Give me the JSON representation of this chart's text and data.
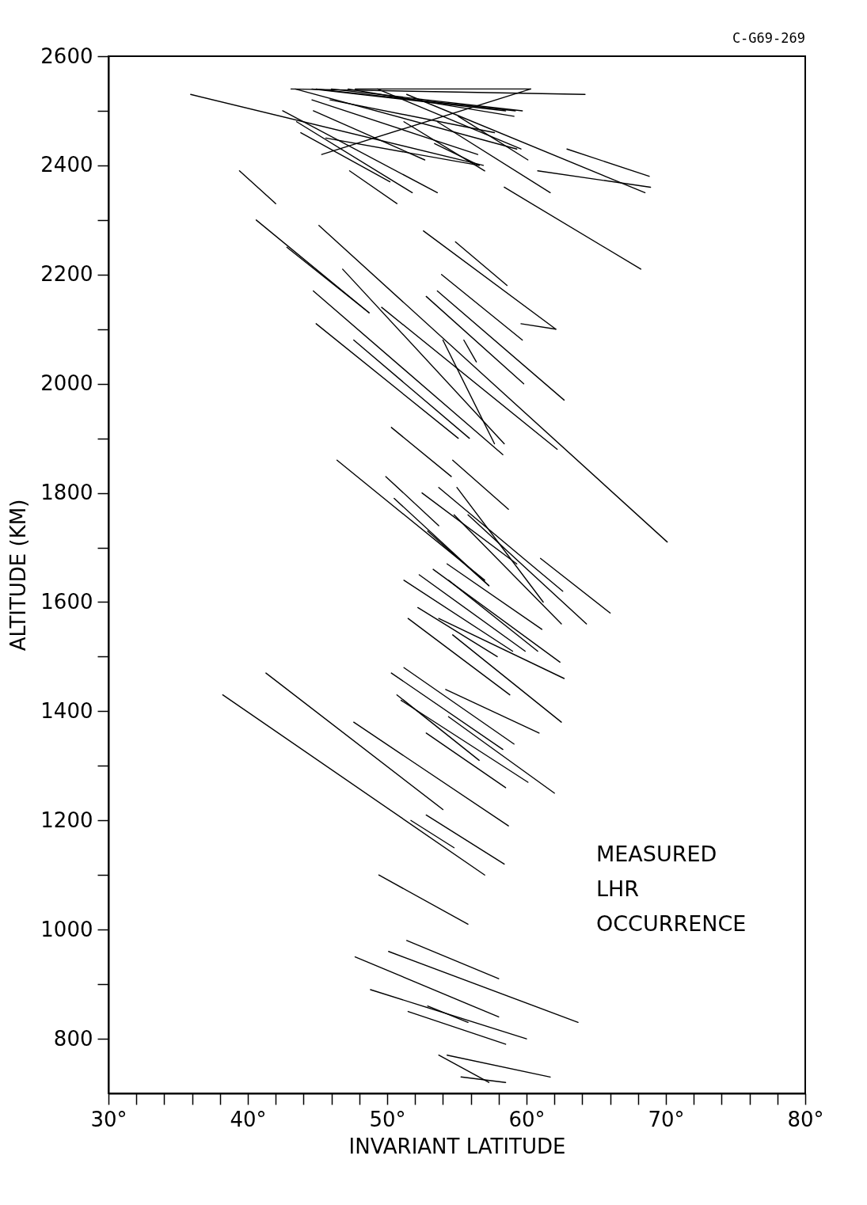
{
  "chart_data": {
    "type": "line",
    "xlabel": "INVARIANT LATITUDE",
    "ylabel": "ALTITUDE (KM)",
    "annotations": [
      "C-G69-269",
      "MEASURED\nLHR\nOCCURRENCE"
    ],
    "xlim": [
      30,
      80
    ],
    "ylim": [
      700,
      2600
    ],
    "xticks": [
      {
        "value": 30,
        "label": "30°"
      },
      {
        "value": 32,
        "label": null
      },
      {
        "value": 34,
        "label": null
      },
      {
        "value": 36,
        "label": null
      },
      {
        "value": 38,
        "label": null
      },
      {
        "value": 40,
        "label": "40°"
      },
      {
        "value": 42,
        "label": null
      },
      {
        "value": 44,
        "label": null
      },
      {
        "value": 46,
        "label": null
      },
      {
        "value": 48,
        "label": null
      },
      {
        "value": 50,
        "label": "50°"
      },
      {
        "value": 52,
        "label": null
      },
      {
        "value": 54,
        "label": null
      },
      {
        "value": 56,
        "label": null
      },
      {
        "value": 58,
        "label": null
      },
      {
        "value": 60,
        "label": "60°"
      },
      {
        "value": 62,
        "label": null
      },
      {
        "value": 64,
        "label": null
      },
      {
        "value": 66,
        "label": null
      },
      {
        "value": 68,
        "label": null
      },
      {
        "value": 70,
        "label": "70°"
      },
      {
        "value": 72,
        "label": null
      },
      {
        "value": 74,
        "label": null
      },
      {
        "value": 76,
        "label": null
      },
      {
        "value": 78,
        "label": null
      },
      {
        "value": 80,
        "label": "80°"
      }
    ],
    "yticks": [
      800,
      {
        "value": 900,
        "label": null
      },
      1000,
      {
        "value": 1100,
        "label": null
      },
      1200,
      {
        "value": 1300,
        "label": null
      },
      1400,
      {
        "value": 1500,
        "label": null
      },
      1600,
      {
        "value": 1700,
        "label": null
      },
      1800,
      {
        "value": 1900,
        "label": null
      },
      2000,
      {
        "value": 2100,
        "label": null
      },
      2200,
      {
        "value": 2300,
        "label": null
      },
      2400,
      {
        "value": 2500,
        "label": null
      },
      2600
    ],
    "series": [
      {
        "color": "#000000",
        "x": [
          35.9,
          56.9
        ],
        "values": [
          2530,
          2400
        ]
      },
      {
        "color": "#000000",
        "x": [
          43.1,
          64.2
        ],
        "values": [
          2540,
          2530
        ]
      },
      {
        "color": "#000000",
        "x": [
          43.4,
          59.3
        ],
        "values": [
          2540,
          2430
        ]
      },
      {
        "color": "#000000",
        "x": [
          44.6,
          58.5
        ],
        "values": [
          2540,
          2500
        ]
      },
      {
        "color": "#000000",
        "x": [
          44.9,
          59.2
        ],
        "values": [
          2540,
          2500
        ]
      },
      {
        "color": "#000000",
        "x": [
          46.0,
          59.7
        ],
        "values": [
          2540,
          2500
        ]
      },
      {
        "color": "#000000",
        "x": [
          47.2,
          59.1
        ],
        "values": [
          2540,
          2490
        ]
      },
      {
        "color": "#000000",
        "x": [
          47.7,
          60.3
        ],
        "values": [
          2540,
          2540
        ]
      },
      {
        "color": "#000000",
        "x": [
          49.3,
          59.6
        ],
        "values": [
          2540,
          2430
        ]
      },
      {
        "color": "#000000",
        "x": [
          51.4,
          68.5
        ],
        "values": [
          2530,
          2350
        ]
      },
      {
        "color": "#000000",
        "x": [
          60.8,
          68.9
        ],
        "values": [
          2390,
          2360
        ]
      },
      {
        "color": "#000000",
        "x": [
          55.1,
          60.1
        ],
        "values": [
          2490,
          2410
        ]
      },
      {
        "color": "#000000",
        "x": [
          62.9,
          68.8
        ],
        "values": [
          2430,
          2380
        ]
      },
      {
        "color": "#000000",
        "x": [
          45.9,
          57.7
        ],
        "values": [
          2520,
          2460
        ]
      },
      {
        "color": "#000000",
        "x": [
          44.6,
          56.5
        ],
        "values": [
          2520,
          2420
        ]
      },
      {
        "color": "#000000",
        "x": [
          51.2,
          57.0
        ],
        "values": [
          2480,
          2390
        ]
      },
      {
        "color": "#000000",
        "x": [
          53.4,
          56.6
        ],
        "values": [
          2440,
          2400
        ]
      },
      {
        "color": "#000000",
        "x": [
          58.4,
          68.2
        ],
        "values": [
          2360,
          2210
        ]
      },
      {
        "color": "#000000",
        "x": [
          53.6,
          61.7
        ],
        "values": [
          2480,
          2350
        ]
      },
      {
        "color": "#000000",
        "x": [
          45.3,
          60.3
        ],
        "values": [
          2420,
          2540
        ]
      },
      {
        "color": "#000000",
        "x": [
          42.5,
          53.6
        ],
        "values": [
          2500,
          2350
        ]
      },
      {
        "color": "#000000",
        "x": [
          43.5,
          51.8
        ],
        "values": [
          2480,
          2350
        ]
      },
      {
        "color": "#000000",
        "x": [
          43.8,
          50.2
        ],
        "values": [
          2460,
          2370
        ]
      },
      {
        "color": "#000000",
        "x": [
          44.7,
          52.7
        ],
        "values": [
          2500,
          2410
        ]
      },
      {
        "color": "#000000",
        "x": [
          39.4,
          42.0
        ],
        "values": [
          2390,
          2330
        ]
      },
      {
        "color": "#000000",
        "x": [
          47.3,
          50.7
        ],
        "values": [
          2390,
          2330
        ]
      },
      {
        "color": "#000000",
        "x": [
          45.6,
          56.6
        ],
        "values": [
          2450,
          2400
        ]
      },
      {
        "color": "#000000",
        "x": [
          40.6,
          48.7
        ],
        "values": [
          2300,
          2130
        ]
      },
      {
        "color": "#000000",
        "x": [
          49.6,
          62.2
        ],
        "values": [
          2140,
          1880
        ]
      },
      {
        "color": "#000000",
        "x": [
          45.1,
          70.1
        ],
        "values": [
          2290,
          1710
        ]
      },
      {
        "color": "#000000",
        "x": [
          42.8,
          48.7
        ],
        "values": [
          2250,
          2130
        ]
      },
      {
        "color": "#000000",
        "x": [
          46.8,
          58.4
        ],
        "values": [
          2210,
          1890
        ]
      },
      {
        "color": "#000000",
        "x": [
          44.7,
          58.3
        ],
        "values": [
          2170,
          1870
        ]
      },
      {
        "color": "#000000",
        "x": [
          44.9,
          55.1
        ],
        "values": [
          2110,
          1900
        ]
      },
      {
        "color": "#000000",
        "x": [
          47.6,
          55.9
        ],
        "values": [
          2080,
          1900
        ]
      },
      {
        "color": "#000000",
        "x": [
          54.0,
          57.7
        ],
        "values": [
          2080,
          1890
        ]
      },
      {
        "color": "#000000",
        "x": [
          55.5,
          56.4
        ],
        "values": [
          2080,
          2040
        ]
      },
      {
        "color": "#000000",
        "x": [
          52.6,
          62.1
        ],
        "values": [
          2280,
          2100
        ]
      },
      {
        "color": "#000000",
        "x": [
          54.9,
          58.6
        ],
        "values": [
          2260,
          2180
        ]
      },
      {
        "color": "#000000",
        "x": [
          53.9,
          59.7
        ],
        "values": [
          2200,
          2080
        ]
      },
      {
        "color": "#000000",
        "x": [
          53.6,
          62.7
        ],
        "values": [
          2170,
          1970
        ]
      },
      {
        "color": "#000000",
        "x": [
          52.8,
          59.8
        ],
        "values": [
          2160,
          2000
        ]
      },
      {
        "color": "#000000",
        "x": [
          59.6,
          62.1
        ],
        "values": [
          2110,
          2100
        ]
      },
      {
        "color": "#000000",
        "x": [
          50.3,
          54.6
        ],
        "values": [
          1920,
          1830
        ]
      },
      {
        "color": "#000000",
        "x": [
          46.4,
          57.0
        ],
        "values": [
          1860,
          1640
        ]
      },
      {
        "color": "#000000",
        "x": [
          54.7,
          58.7
        ],
        "values": [
          1860,
          1770
        ]
      },
      {
        "color": "#000000",
        "x": [
          49.9,
          53.7
        ],
        "values": [
          1830,
          1740
        ]
      },
      {
        "color": "#000000",
        "x": [
          50.5,
          57.3
        ],
        "values": [
          1790,
          1630
        ]
      },
      {
        "color": "#000000",
        "x": [
          52.5,
          59.3
        ],
        "values": [
          1800,
          1670
        ]
      },
      {
        "color": "#000000",
        "x": [
          53.7,
          62.6
        ],
        "values": [
          1810,
          1620
        ]
      },
      {
        "color": "#000000",
        "x": [
          55.0,
          61.2
        ],
        "values": [
          1810,
          1600
        ]
      },
      {
        "color": "#000000",
        "x": [
          55.8,
          64.3
        ],
        "values": [
          1760,
          1560
        ]
      },
      {
        "color": "#000000",
        "x": [
          54.8,
          62.5
        ],
        "values": [
          1760,
          1560
        ]
      },
      {
        "color": "#000000",
        "x": [
          61.0,
          66.0
        ],
        "values": [
          1680,
          1580
        ]
      },
      {
        "color": "#000000",
        "x": [
          51.2,
          59.0
        ],
        "values": [
          1640,
          1510
        ]
      },
      {
        "color": "#000000",
        "x": [
          52.3,
          59.9
        ],
        "values": [
          1650,
          1510
        ]
      },
      {
        "color": "#000000",
        "x": [
          53.3,
          62.4
        ],
        "values": [
          1660,
          1490
        ]
      },
      {
        "color": "#000000",
        "x": [
          54.4,
          60.8
        ],
        "values": [
          1640,
          1510
        ]
      },
      {
        "color": "#000000",
        "x": [
          52.2,
          57.9
        ],
        "values": [
          1590,
          1500
        ]
      },
      {
        "color": "#000000",
        "x": [
          51.5,
          58.8
        ],
        "values": [
          1570,
          1430
        ]
      },
      {
        "color": "#000000",
        "x": [
          53.7,
          62.7
        ],
        "values": [
          1570,
          1460
        ]
      },
      {
        "color": "#000000",
        "x": [
          54.7,
          62.5
        ],
        "values": [
          1540,
          1380
        ]
      },
      {
        "color": "#000000",
        "x": [
          52.9,
          57.3
        ],
        "values": [
          1730,
          1630
        ]
      },
      {
        "color": "#000000",
        "x": [
          54.3,
          61.1
        ],
        "values": [
          1670,
          1550
        ]
      },
      {
        "color": "#000000",
        "x": [
          51.2,
          59.1
        ],
        "values": [
          1480,
          1340
        ]
      },
      {
        "color": "#000000",
        "x": [
          50.3,
          58.3
        ],
        "values": [
          1470,
          1330
        ]
      },
      {
        "color": "#000000",
        "x": [
          54.2,
          60.9
        ],
        "values": [
          1440,
          1360
        ]
      },
      {
        "color": "#000000",
        "x": [
          50.7,
          56.6
        ],
        "values": [
          1430,
          1310
        ]
      },
      {
        "color": "#000000",
        "x": [
          51.0,
          60.1
        ],
        "values": [
          1420,
          1270
        ]
      },
      {
        "color": "#000000",
        "x": [
          54.4,
          62.0
        ],
        "values": [
          1390,
          1250
        ]
      },
      {
        "color": "#000000",
        "x": [
          52.8,
          58.5
        ],
        "values": [
          1360,
          1260
        ]
      },
      {
        "color": "#000000",
        "x": [
          38.2,
          57.0
        ],
        "values": [
          1430,
          1100
        ]
      },
      {
        "color": "#000000",
        "x": [
          41.3,
          54.0
        ],
        "values": [
          1470,
          1220
        ]
      },
      {
        "color": "#000000",
        "x": [
          47.6,
          58.7
        ],
        "values": [
          1380,
          1190
        ]
      },
      {
        "color": "#000000",
        "x": [
          51.7,
          54.8
        ],
        "values": [
          1200,
          1150
        ]
      },
      {
        "color": "#000000",
        "x": [
          52.8,
          58.4
        ],
        "values": [
          1210,
          1120
        ]
      },
      {
        "color": "#000000",
        "x": [
          49.4,
          55.8
        ],
        "values": [
          1100,
          1010
        ]
      },
      {
        "color": "#000000",
        "x": [
          51.4,
          58.0
        ],
        "values": [
          980,
          910
        ]
      },
      {
        "color": "#000000",
        "x": [
          50.1,
          63.7
        ],
        "values": [
          960,
          830
        ]
      },
      {
        "color": "#000000",
        "x": [
          47.7,
          58.0
        ],
        "values": [
          950,
          840
        ]
      },
      {
        "color": "#000000",
        "x": [
          48.8,
          60.0
        ],
        "values": [
          890,
          800
        ]
      },
      {
        "color": "#000000",
        "x": [
          52.9,
          55.8
        ],
        "values": [
          860,
          830
        ]
      },
      {
        "color": "#000000",
        "x": [
          51.5,
          58.5
        ],
        "values": [
          850,
          790
        ]
      },
      {
        "color": "#000000",
        "x": [
          54.3,
          61.7
        ],
        "values": [
          770,
          730
        ]
      },
      {
        "color": "#000000",
        "x": [
          53.7,
          57.3
        ],
        "values": [
          770,
          720
        ]
      },
      {
        "color": "#000000",
        "x": [
          55.3,
          58.5
        ],
        "values": [
          730,
          720
        ]
      }
    ]
  }
}
